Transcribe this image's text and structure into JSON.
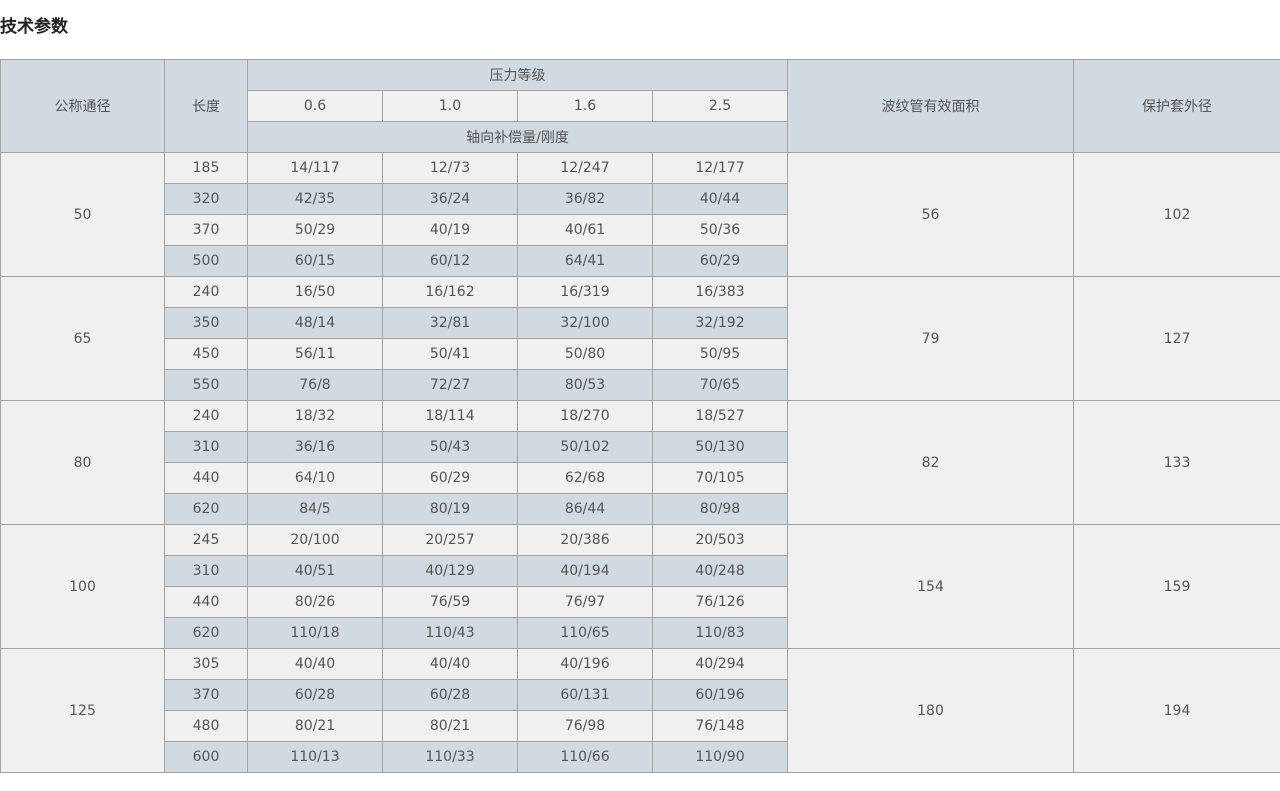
{
  "title": "技术参数",
  "header": {
    "dn": "公称通径",
    "length": "长度",
    "pressure": "压力等级",
    "pressures": [
      "0.6",
      "1.0",
      "1.6",
      "2.5"
    ],
    "axial": "轴向补偿量/刚度",
    "area": "波纹管有效面积",
    "outer": "保护套外径"
  },
  "colors": {
    "header_bg": "#d1dae1",
    "row_bg": "#f0f0f0",
    "alt_row_bg": "#d1dae1",
    "border": "#a3a3a3"
  },
  "groups": [
    {
      "dn": "50",
      "area": "56",
      "outer": "102",
      "rows": [
        [
          "185",
          "14/117",
          "12/73",
          "12/247",
          "12/177"
        ],
        [
          "320",
          "42/35",
          "36/24",
          "36/82",
          "40/44"
        ],
        [
          "370",
          "50/29",
          "40/19",
          "40/61",
          "50/36"
        ],
        [
          "500",
          "60/15",
          "60/12",
          "64/41",
          "60/29"
        ]
      ]
    },
    {
      "dn": "65",
      "area": "79",
      "outer": "127",
      "rows": [
        [
          "240",
          "16/50",
          "16/162",
          "16/319",
          "16/383"
        ],
        [
          "350",
          "48/14",
          "32/81",
          "32/100",
          "32/192"
        ],
        [
          "450",
          "56/11",
          "50/41",
          "50/80",
          "50/95"
        ],
        [
          "550",
          "76/8",
          "72/27",
          "80/53",
          "70/65"
        ]
      ]
    },
    {
      "dn": "80",
      "area": "82",
      "outer": "133",
      "rows": [
        [
          "240",
          "18/32",
          "18/114",
          "18/270",
          "18/527"
        ],
        [
          "310",
          "36/16",
          "50/43",
          "50/102",
          "50/130"
        ],
        [
          "440",
          "64/10",
          "60/29",
          "62/68",
          "70/105"
        ],
        [
          "620",
          "84/5",
          "80/19",
          "86/44",
          "80/98"
        ]
      ]
    },
    {
      "dn": "100",
      "area": "154",
      "outer": "159",
      "rows": [
        [
          "245",
          "20/100",
          "20/257",
          "20/386",
          "20/503"
        ],
        [
          "310",
          "40/51",
          "40/129",
          "40/194",
          "40/248"
        ],
        [
          "440",
          "80/26",
          "76/59",
          "76/97",
          "76/126"
        ],
        [
          "620",
          "110/18",
          "110/43",
          "110/65",
          "110/83"
        ]
      ]
    },
    {
      "dn": "125",
      "area": "180",
      "outer": "194",
      "rows": [
        [
          "305",
          "40/40",
          "40/40",
          "40/196",
          "40/294"
        ],
        [
          "370",
          "60/28",
          "60/28",
          "60/131",
          "60/196"
        ],
        [
          "480",
          "80/21",
          "80/21",
          "76/98",
          "76/148"
        ],
        [
          "600",
          "110/13",
          "110/33",
          "110/66",
          "110/90"
        ]
      ]
    }
  ]
}
